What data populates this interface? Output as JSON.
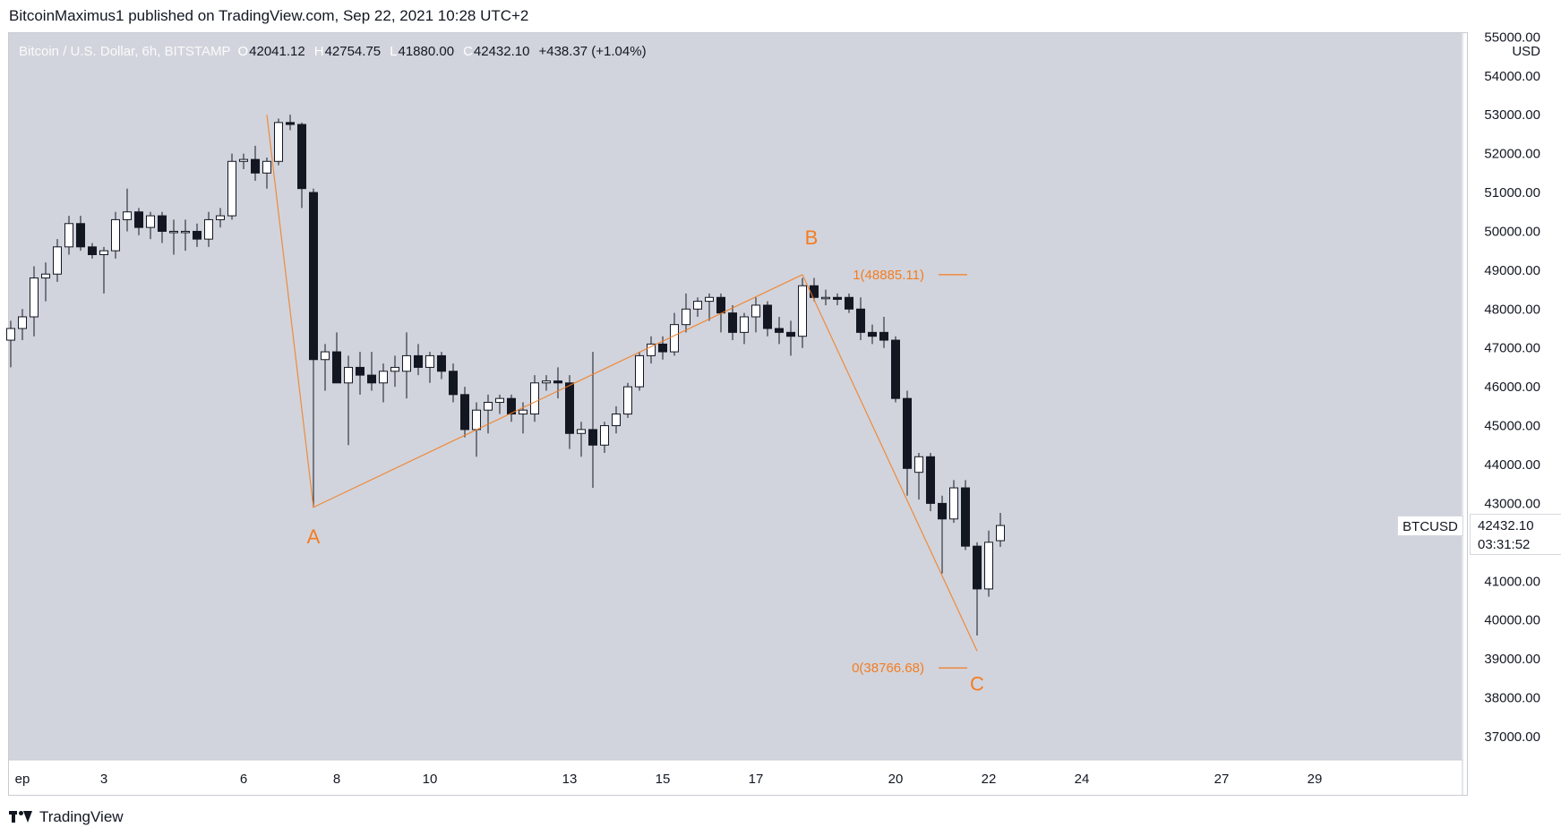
{
  "header": {
    "published_line": "BitcoinMaximus1 published on TradingView.com, Sep 22, 2021 10:28 UTC+2"
  },
  "legend": {
    "title": "Bitcoin / U.S. Dollar, 6h, BITSTAMP",
    "open_key": "O",
    "open": "42041.12",
    "high_key": "H",
    "high": "42754.75",
    "low_key": "L",
    "low": "41880.00",
    "close_key": "C",
    "close": "42432.10",
    "change": "+438.37 (+1.04%)"
  },
  "price_axis": {
    "currency": "USD",
    "ticks": [
      "55000.00",
      "54000.00",
      "53000.00",
      "52000.00",
      "51000.00",
      "50000.00",
      "49000.00",
      "48000.00",
      "47000.00",
      "46000.00",
      "45000.00",
      "44000.00",
      "43000.00",
      "42000.00",
      "41000.00",
      "40000.00",
      "39000.00",
      "38000.00",
      "37000.00"
    ],
    "tick_values": [
      55000,
      54000,
      53000,
      52000,
      51000,
      50000,
      49000,
      48000,
      47000,
      46000,
      45000,
      44000,
      43000,
      42000,
      41000,
      40000,
      39000,
      38000,
      37000
    ]
  },
  "time_axis": {
    "labels": [
      "ep",
      "3",
      "6",
      "8",
      "10",
      "13",
      "15",
      "17",
      "20",
      "22",
      "24",
      "27",
      "29"
    ],
    "label_positions": [
      0.5,
      4,
      10,
      14,
      18,
      24,
      28,
      32,
      38,
      42,
      46,
      52,
      56
    ]
  },
  "last_price": {
    "ticker": "BTCUSD",
    "price": "42432.10",
    "countdown": "03:31:52"
  },
  "annotations": {
    "wave_a": "A",
    "wave_b": "B",
    "wave_c": "C",
    "fib_top": "1(48885.11)",
    "fib_bottom": "0(38766.68)",
    "fib_top_value": 48885.11,
    "fib_bottom_value": 38766.68,
    "color": "#f57c20"
  },
  "colors": {
    "background": "#d1d4dc",
    "bull": "#ffffff",
    "bear": "#131722",
    "wick": "#131722"
  },
  "footer": {
    "brand": "TradingView"
  },
  "chart_data": {
    "type": "candlestick",
    "timeframe": "6h",
    "ylim": [
      36400,
      55100
    ],
    "x_unit": "day of September 2021 (6h candles)",
    "candles": [
      {
        "x": 0.0,
        "o": 47200,
        "h": 47700,
        "l": 46500,
        "c": 47500
      },
      {
        "x": 0.5,
        "o": 47500,
        "h": 48000,
        "l": 47200,
        "c": 47800
      },
      {
        "x": 1.0,
        "o": 47800,
        "h": 49100,
        "l": 47300,
        "c": 48800
      },
      {
        "x": 1.5,
        "o": 48800,
        "h": 49200,
        "l": 48200,
        "c": 48900
      },
      {
        "x": 2.0,
        "o": 48900,
        "h": 49800,
        "l": 48700,
        "c": 49600
      },
      {
        "x": 2.5,
        "o": 49600,
        "h": 50400,
        "l": 49400,
        "c": 50200
      },
      {
        "x": 3.0,
        "o": 50200,
        "h": 50400,
        "l": 49500,
        "c": 49600
      },
      {
        "x": 3.5,
        "o": 49600,
        "h": 49700,
        "l": 49300,
        "c": 49400
      },
      {
        "x": 4.0,
        "o": 49400,
        "h": 49600,
        "l": 48400,
        "c": 49500
      },
      {
        "x": 4.5,
        "o": 49500,
        "h": 50500,
        "l": 49300,
        "c": 50300
      },
      {
        "x": 5.0,
        "o": 50300,
        "h": 51100,
        "l": 50000,
        "c": 50500
      },
      {
        "x": 5.5,
        "o": 50500,
        "h": 50600,
        "l": 49900,
        "c": 50100
      },
      {
        "x": 6.0,
        "o": 50100,
        "h": 50500,
        "l": 49800,
        "c": 50400
      },
      {
        "x": 6.5,
        "o": 50400,
        "h": 50500,
        "l": 49700,
        "c": 50000
      },
      {
        "x": 7.0,
        "o": 50000,
        "h": 50300,
        "l": 49400,
        "c": 50000
      },
      {
        "x": 7.5,
        "o": 50000,
        "h": 50300,
        "l": 49500,
        "c": 50000
      },
      {
        "x": 8.0,
        "o": 50000,
        "h": 50200,
        "l": 49600,
        "c": 49800
      },
      {
        "x": 8.5,
        "o": 49800,
        "h": 50500,
        "l": 49600,
        "c": 50300
      },
      {
        "x": 9.0,
        "o": 50300,
        "h": 50600,
        "l": 50100,
        "c": 50400
      },
      {
        "x": 9.5,
        "o": 50400,
        "h": 52000,
        "l": 50300,
        "c": 51800
      },
      {
        "x": 10.0,
        "o": 51800,
        "h": 52000,
        "l": 51600,
        "c": 51850
      },
      {
        "x": 10.5,
        "o": 51850,
        "h": 52200,
        "l": 51300,
        "c": 51500
      },
      {
        "x": 11.0,
        "o": 51500,
        "h": 51900,
        "l": 51100,
        "c": 51800
      },
      {
        "x": 11.5,
        "o": 51800,
        "h": 52900,
        "l": 51700,
        "c": 52800
      },
      {
        "x": 12.0,
        "o": 52800,
        "h": 53000,
        "l": 52600,
        "c": 52750
      },
      {
        "x": 12.5,
        "o": 52750,
        "h": 52800,
        "l": 50600,
        "c": 51100
      },
      {
        "x": 13.0,
        "o": 51000,
        "h": 51100,
        "l": 42900,
        "c": 46700
      },
      {
        "x": 13.5,
        "o": 46700,
        "h": 47100,
        "l": 45900,
        "c": 46900
      },
      {
        "x": 14.0,
        "o": 46900,
        "h": 47400,
        "l": 46100,
        "c": 46100
      },
      {
        "x": 14.5,
        "o": 46100,
        "h": 46800,
        "l": 44500,
        "c": 46500
      },
      {
        "x": 15.0,
        "o": 46500,
        "h": 46900,
        "l": 45800,
        "c": 46300
      },
      {
        "x": 15.5,
        "o": 46300,
        "h": 46900,
        "l": 45900,
        "c": 46100
      },
      {
        "x": 16.0,
        "o": 46100,
        "h": 46600,
        "l": 45600,
        "c": 46400
      },
      {
        "x": 16.5,
        "o": 46400,
        "h": 46800,
        "l": 46000,
        "c": 46500
      },
      {
        "x": 17.0,
        "o": 46400,
        "h": 47400,
        "l": 45700,
        "c": 46800
      },
      {
        "x": 17.5,
        "o": 46800,
        "h": 47100,
        "l": 46300,
        "c": 46500
      },
      {
        "x": 18.0,
        "o": 46500,
        "h": 46900,
        "l": 46100,
        "c": 46800
      },
      {
        "x": 18.5,
        "o": 46800,
        "h": 46900,
        "l": 46200,
        "c": 46400
      },
      {
        "x": 19.0,
        "o": 46400,
        "h": 46600,
        "l": 45600,
        "c": 45800
      },
      {
        "x": 19.5,
        "o": 45800,
        "h": 46000,
        "l": 44700,
        "c": 44900
      },
      {
        "x": 20.0,
        "o": 44900,
        "h": 45600,
        "l": 44200,
        "c": 45400
      },
      {
        "x": 20.5,
        "o": 45400,
        "h": 45800,
        "l": 44800,
        "c": 45600
      },
      {
        "x": 21.0,
        "o": 45600,
        "h": 45800,
        "l": 45300,
        "c": 45700
      },
      {
        "x": 21.5,
        "o": 45700,
        "h": 45800,
        "l": 45100,
        "c": 45300
      },
      {
        "x": 22.0,
        "o": 45300,
        "h": 45600,
        "l": 44800,
        "c": 45400
      },
      {
        "x": 22.5,
        "o": 45300,
        "h": 46300,
        "l": 45100,
        "c": 46100
      },
      {
        "x": 23.0,
        "o": 46100,
        "h": 46300,
        "l": 45900,
        "c": 46150
      },
      {
        "x": 23.5,
        "o": 46150,
        "h": 46500,
        "l": 45700,
        "c": 46100
      },
      {
        "x": 24.0,
        "o": 46100,
        "h": 46300,
        "l": 44400,
        "c": 44800
      },
      {
        "x": 24.5,
        "o": 44800,
        "h": 45100,
        "l": 44200,
        "c": 44900
      },
      {
        "x": 25.0,
        "o": 44900,
        "h": 46900,
        "l": 43400,
        "c": 44500
      },
      {
        "x": 25.5,
        "o": 44500,
        "h": 45100,
        "l": 44300,
        "c": 45000
      },
      {
        "x": 26.0,
        "o": 45000,
        "h": 45500,
        "l": 44800,
        "c": 45300
      },
      {
        "x": 26.5,
        "o": 45300,
        "h": 46100,
        "l": 45200,
        "c": 46000
      },
      {
        "x": 27.0,
        "o": 46000,
        "h": 46900,
        "l": 45900,
        "c": 46800
      },
      {
        "x": 27.5,
        "o": 46800,
        "h": 47300,
        "l": 46600,
        "c": 47100
      },
      {
        "x": 28.0,
        "o": 47100,
        "h": 47300,
        "l": 46700,
        "c": 46900
      },
      {
        "x": 28.5,
        "o": 46900,
        "h": 47900,
        "l": 46800,
        "c": 47600
      },
      {
        "x": 29.0,
        "o": 47600,
        "h": 48400,
        "l": 47400,
        "c": 48000
      },
      {
        "x": 29.5,
        "o": 48000,
        "h": 48300,
        "l": 47800,
        "c": 48200
      },
      {
        "x": 30.0,
        "o": 48200,
        "h": 48400,
        "l": 47700,
        "c": 48300
      },
      {
        "x": 30.5,
        "o": 48300,
        "h": 48400,
        "l": 47400,
        "c": 47900
      },
      {
        "x": 31.0,
        "o": 47900,
        "h": 48100,
        "l": 47200,
        "c": 47400
      },
      {
        "x": 31.5,
        "o": 47400,
        "h": 47900,
        "l": 47100,
        "c": 47800
      },
      {
        "x": 32.0,
        "o": 47800,
        "h": 48300,
        "l": 47400,
        "c": 48100
      },
      {
        "x": 32.5,
        "o": 48100,
        "h": 48200,
        "l": 47300,
        "c": 47500
      },
      {
        "x": 33.0,
        "o": 47500,
        "h": 47800,
        "l": 47100,
        "c": 47400
      },
      {
        "x": 33.5,
        "o": 47400,
        "h": 47700,
        "l": 46800,
        "c": 47300
      },
      {
        "x": 34.0,
        "o": 47300,
        "h": 48800,
        "l": 47000,
        "c": 48600
      },
      {
        "x": 34.5,
        "o": 48600,
        "h": 48800,
        "l": 48200,
        "c": 48300
      },
      {
        "x": 35.0,
        "o": 48300,
        "h": 48500,
        "l": 48100,
        "c": 48300
      },
      {
        "x": 35.5,
        "o": 48300,
        "h": 48400,
        "l": 48100,
        "c": 48250
      },
      {
        "x": 36.0,
        "o": 48300,
        "h": 48400,
        "l": 47900,
        "c": 48000
      },
      {
        "x": 36.5,
        "o": 48000,
        "h": 48300,
        "l": 47200,
        "c": 47400
      },
      {
        "x": 37.0,
        "o": 47400,
        "h": 47600,
        "l": 47100,
        "c": 47300
      },
      {
        "x": 37.5,
        "o": 47400,
        "h": 47800,
        "l": 47000,
        "c": 47200
      },
      {
        "x": 38.0,
        "o": 47200,
        "h": 47300,
        "l": 45600,
        "c": 45700
      },
      {
        "x": 38.5,
        "o": 45700,
        "h": 45900,
        "l": 43200,
        "c": 43900
      },
      {
        "x": 39.0,
        "o": 43800,
        "h": 44300,
        "l": 43100,
        "c": 44200
      },
      {
        "x": 39.5,
        "o": 44200,
        "h": 44300,
        "l": 42800,
        "c": 43000
      },
      {
        "x": 40.0,
        "o": 43000,
        "h": 43200,
        "l": 41200,
        "c": 42600
      },
      {
        "x": 40.5,
        "o": 42600,
        "h": 43600,
        "l": 42500,
        "c": 43400
      },
      {
        "x": 41.0,
        "o": 43400,
        "h": 43600,
        "l": 41800,
        "c": 41900
      },
      {
        "x": 41.5,
        "o": 41900,
        "h": 42000,
        "l": 39600,
        "c": 40800
      },
      {
        "x": 42.0,
        "o": 40800,
        "h": 42300,
        "l": 40600,
        "c": 42000
      },
      {
        "x": 42.5,
        "o": 42041,
        "h": 42755,
        "l": 41880,
        "c": 42432
      }
    ],
    "wave_points": [
      {
        "x": 11.0,
        "y": 53000
      },
      {
        "x": 13.0,
        "y": 42900
      },
      {
        "x": 34.0,
        "y": 48885
      },
      {
        "x": 41.5,
        "y": 39200
      }
    ]
  }
}
